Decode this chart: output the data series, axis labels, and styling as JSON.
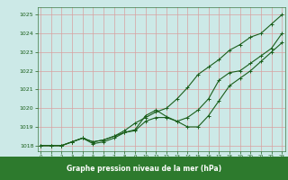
{
  "x": [
    0,
    1,
    2,
    3,
    4,
    5,
    6,
    7,
    8,
    9,
    10,
    11,
    12,
    13,
    14,
    15,
    16,
    17,
    18,
    19,
    20,
    21,
    22,
    23
  ],
  "line1": [
    1018.0,
    1018.0,
    1018.0,
    1018.2,
    1018.4,
    1018.2,
    1018.3,
    1018.5,
    1018.8,
    1019.2,
    1019.5,
    1019.8,
    1020.0,
    1020.5,
    1021.1,
    1021.8,
    1022.2,
    1022.6,
    1023.1,
    1023.4,
    1023.8,
    1024.0,
    1024.5,
    1025.0
  ],
  "line2": [
    1018.0,
    1018.0,
    1018.0,
    1018.2,
    1018.4,
    1018.2,
    1018.3,
    1018.5,
    1018.7,
    1018.8,
    1019.3,
    1019.5,
    1019.5,
    1019.3,
    1019.5,
    1019.9,
    1020.5,
    1021.5,
    1021.9,
    1022.0,
    1022.4,
    1022.8,
    1023.2,
    1024.0
  ],
  "line3": [
    1018.0,
    1018.0,
    1018.0,
    1018.2,
    1018.4,
    1018.1,
    1018.2,
    1018.4,
    1018.7,
    1018.85,
    1019.6,
    1019.9,
    1019.55,
    1019.3,
    1019.0,
    1019.0,
    1019.6,
    1020.4,
    1021.2,
    1021.6,
    1022.0,
    1022.5,
    1023.0,
    1023.5
  ],
  "bg_color": "#cce9e7",
  "grid_color": "#d8a0a0",
  "line_color": "#1a5e1a",
  "xlabel": "Graphe pression niveau de la mer (hPa)",
  "xlabel_bg": "#2d7a2d",
  "xlabel_color": "#ffffff",
  "yticks": [
    1018,
    1019,
    1020,
    1021,
    1022,
    1023,
    1024,
    1025
  ],
  "xticks": [
    0,
    1,
    2,
    3,
    4,
    5,
    6,
    7,
    8,
    9,
    10,
    11,
    12,
    13,
    14,
    15,
    16,
    17,
    18,
    19,
    20,
    21,
    22,
    23
  ]
}
